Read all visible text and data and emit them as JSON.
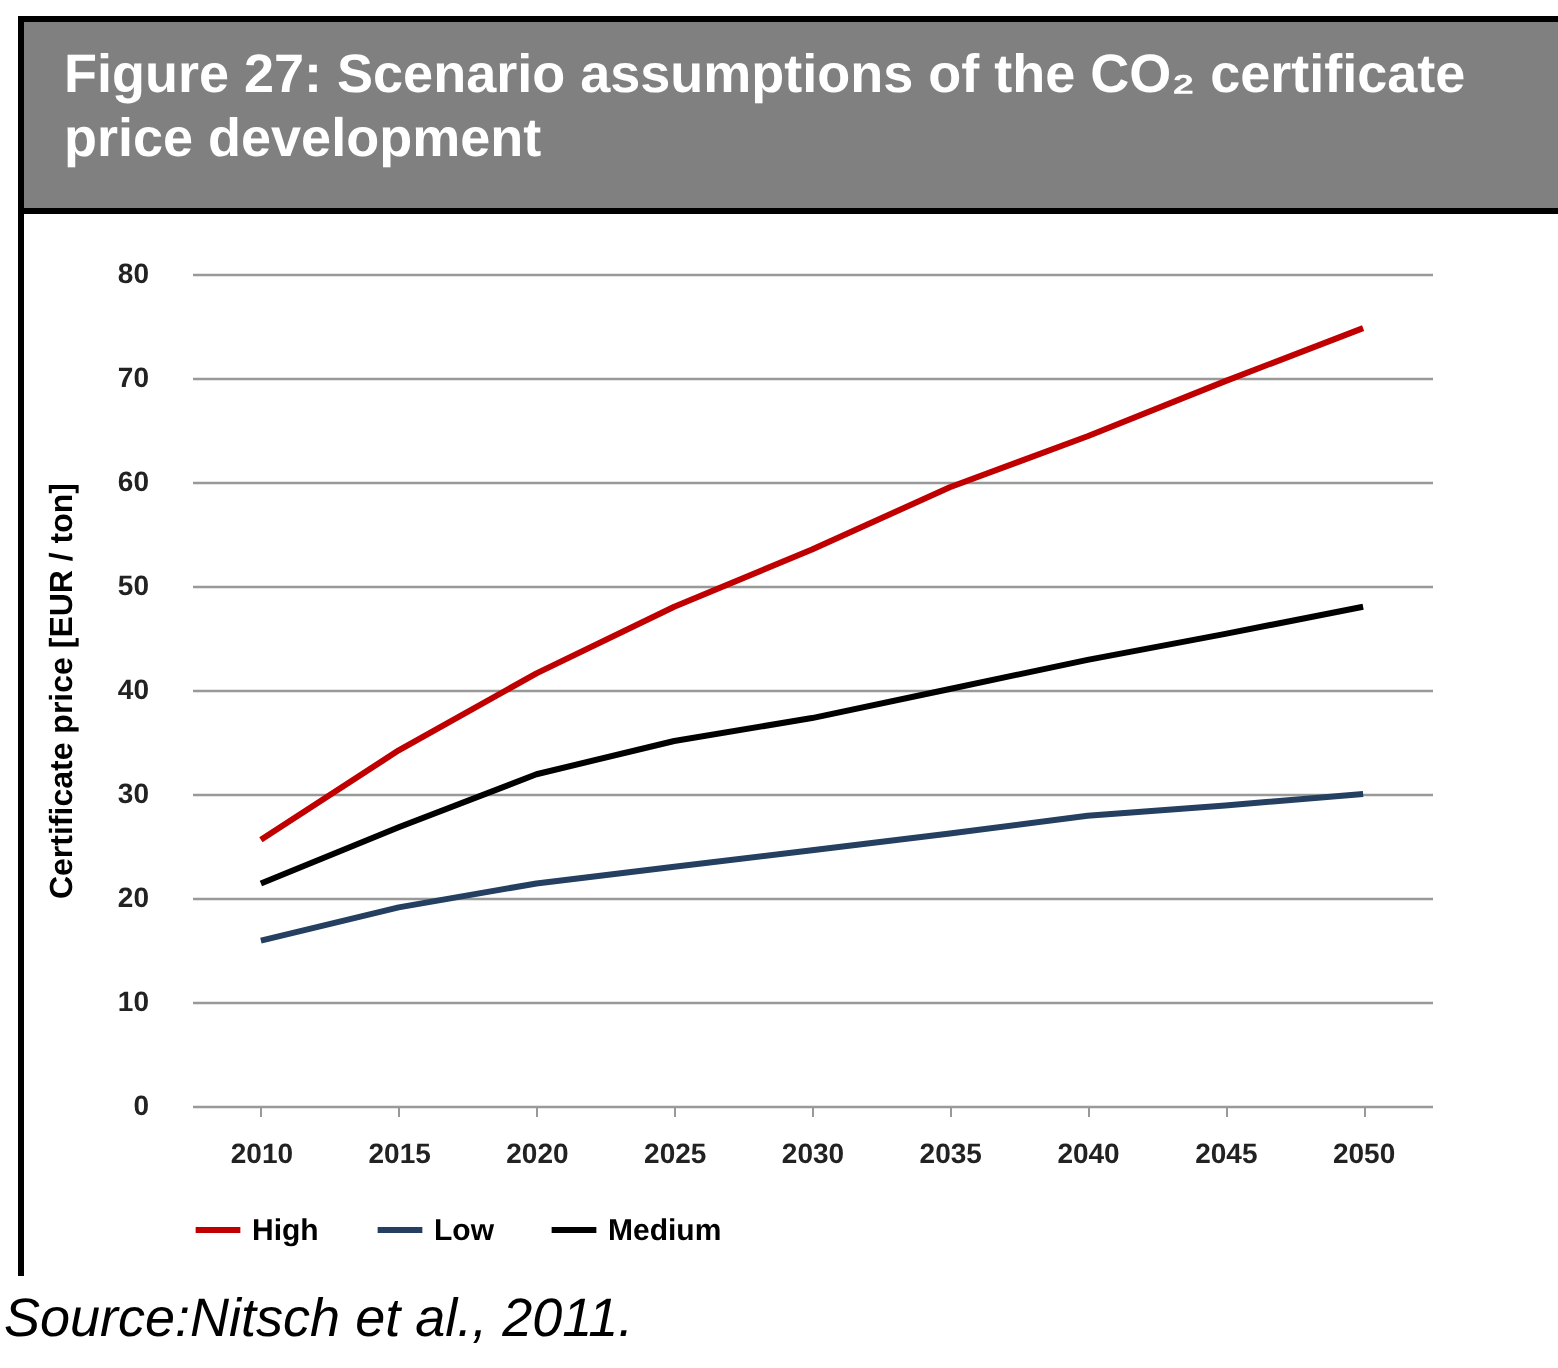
{
  "chart_data": {
    "type": "line",
    "title": "Figure 27: Scenario assumptions of the CO₂ certificate price development",
    "ylabel": "Certificate price  [EUR / ton]",
    "categories": [
      "2010",
      "2015",
      "2020",
      "2025",
      "2030",
      "2035",
      "2040",
      "2045",
      "2050"
    ],
    "series": [
      {
        "name": "High",
        "color": "#c00000",
        "values": [
          25.6,
          34.2,
          41.6,
          48.0,
          53.5,
          59.5,
          64.4,
          69.7,
          74.8
        ]
      },
      {
        "name": "Low",
        "color": "#243f60",
        "values": [
          15.9,
          19.1,
          21.4,
          23.0,
          24.6,
          26.2,
          27.9,
          28.9,
          30.0
        ]
      },
      {
        "name": "Medium",
        "color": "#000000",
        "values": [
          21.4,
          26.8,
          31.9,
          35.1,
          37.3,
          40.1,
          42.9,
          45.4,
          48.0
        ]
      }
    ],
    "ylim": [
      0,
      80
    ],
    "yticks": [
      0,
      10,
      20,
      30,
      40,
      50,
      60,
      70,
      80
    ],
    "grid": "y",
    "legend": "bottom",
    "marker": "none",
    "line_style": "solid",
    "annotations": [
      "Source:Nitsch et al., 2011."
    ]
  }
}
